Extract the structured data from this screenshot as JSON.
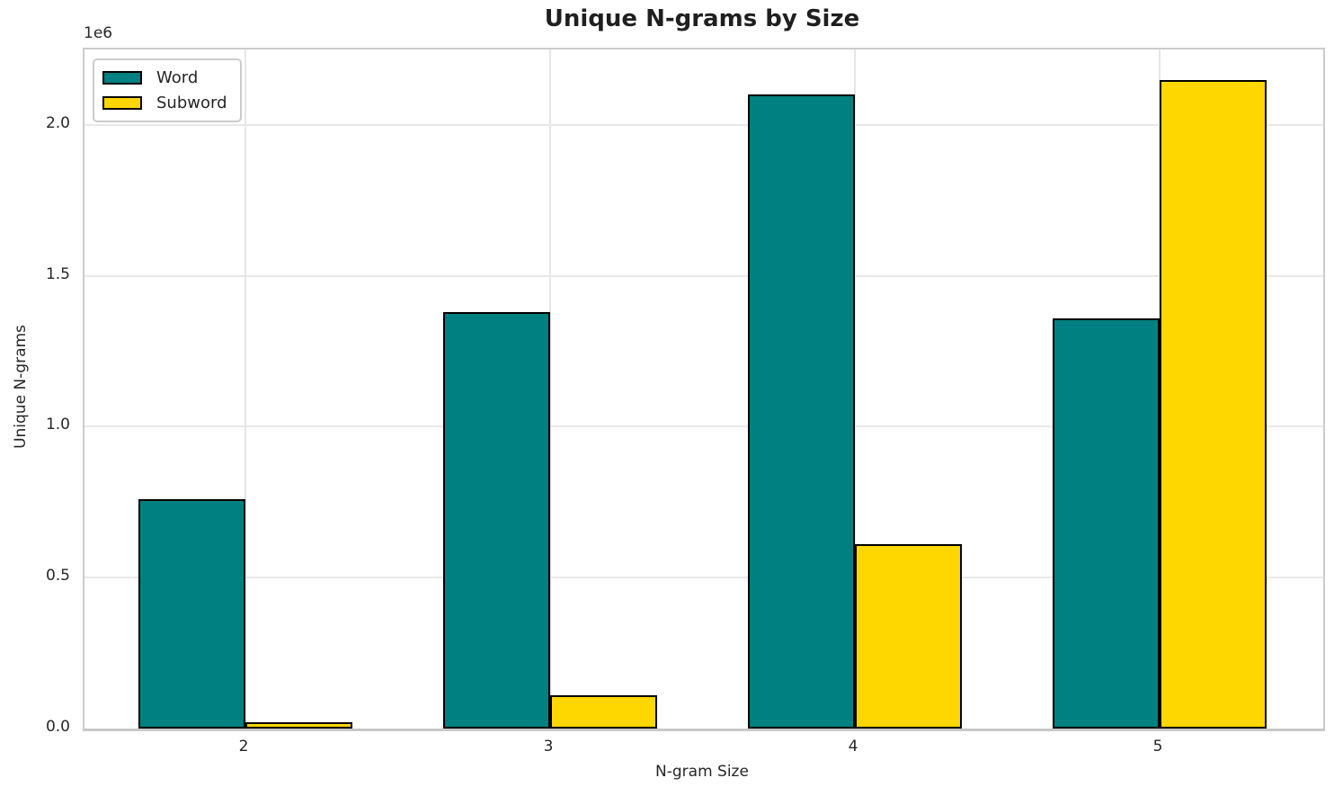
{
  "chart_data": {
    "type": "bar",
    "title": "Unique N-grams by Size",
    "xlabel": "N-gram Size",
    "ylabel": "Unique N-grams",
    "y_offset_label": "1e6",
    "categories": [
      "2",
      "3",
      "4",
      "5"
    ],
    "series": [
      {
        "name": "Word",
        "color": "#008080",
        "values": [
          760000,
          1380000,
          2100000,
          1360000
        ]
      },
      {
        "name": "Subword",
        "color": "#FFD700",
        "values": [
          20000,
          110000,
          610000,
          2150000
        ]
      }
    ],
    "ylim": [
      0,
      2250000
    ],
    "yticks": [
      {
        "value": 0,
        "label": "0.0"
      },
      {
        "value": 500000,
        "label": "0.5"
      },
      {
        "value": 1000000,
        "label": "1.0"
      },
      {
        "value": 1500000,
        "label": "1.5"
      },
      {
        "value": 2000000,
        "label": "2.0"
      }
    ],
    "grid": true,
    "legend_position": "upper left",
    "bar_edge_color": "#000000",
    "text_color": "#262626"
  }
}
